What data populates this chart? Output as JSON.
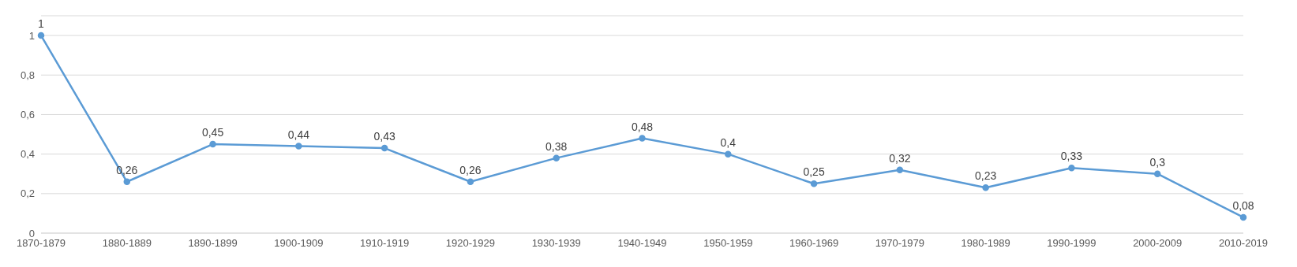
{
  "chart_data": {
    "type": "line",
    "categories": [
      "1870-1879",
      "1880-1889",
      "1890-1899",
      "1900-1909",
      "1910-1919",
      "1920-1929",
      "1930-1939",
      "1940-1949",
      "1950-1959",
      "1960-1969",
      "1970-1979",
      "1980-1989",
      "1990-1999",
      "2000-2009",
      "2010-2019"
    ],
    "series": [
      {
        "color": "#5b9bd5",
        "values": [
          1,
          0.26,
          0.45,
          0.44,
          0.43,
          0.26,
          0.38,
          0.48,
          0.4,
          0.25,
          0.32,
          0.23,
          0.33,
          0.3,
          0.08
        ],
        "value_labels": [
          "1",
          "0,26",
          "0,45",
          "0,44",
          "0,43",
          "0,26",
          "0,38",
          "0,48",
          "0,4",
          "0,25",
          "0,32",
          "0,23",
          "0,33",
          "0,3",
          "0,08"
        ]
      }
    ],
    "ylim": [
      0,
      1.1
    ],
    "yticks": [
      {
        "value": 0,
        "label": "0"
      },
      {
        "value": 0.2,
        "label": "0,2"
      },
      {
        "value": 0.4,
        "label": "0,4"
      },
      {
        "value": 0.6,
        "label": "0,6"
      },
      {
        "value": 0.8,
        "label": "0,8"
      },
      {
        "value": 1,
        "label": "1"
      }
    ],
    "grid": "y",
    "legend": false,
    "marker": "circle",
    "line_style": "solid"
  }
}
